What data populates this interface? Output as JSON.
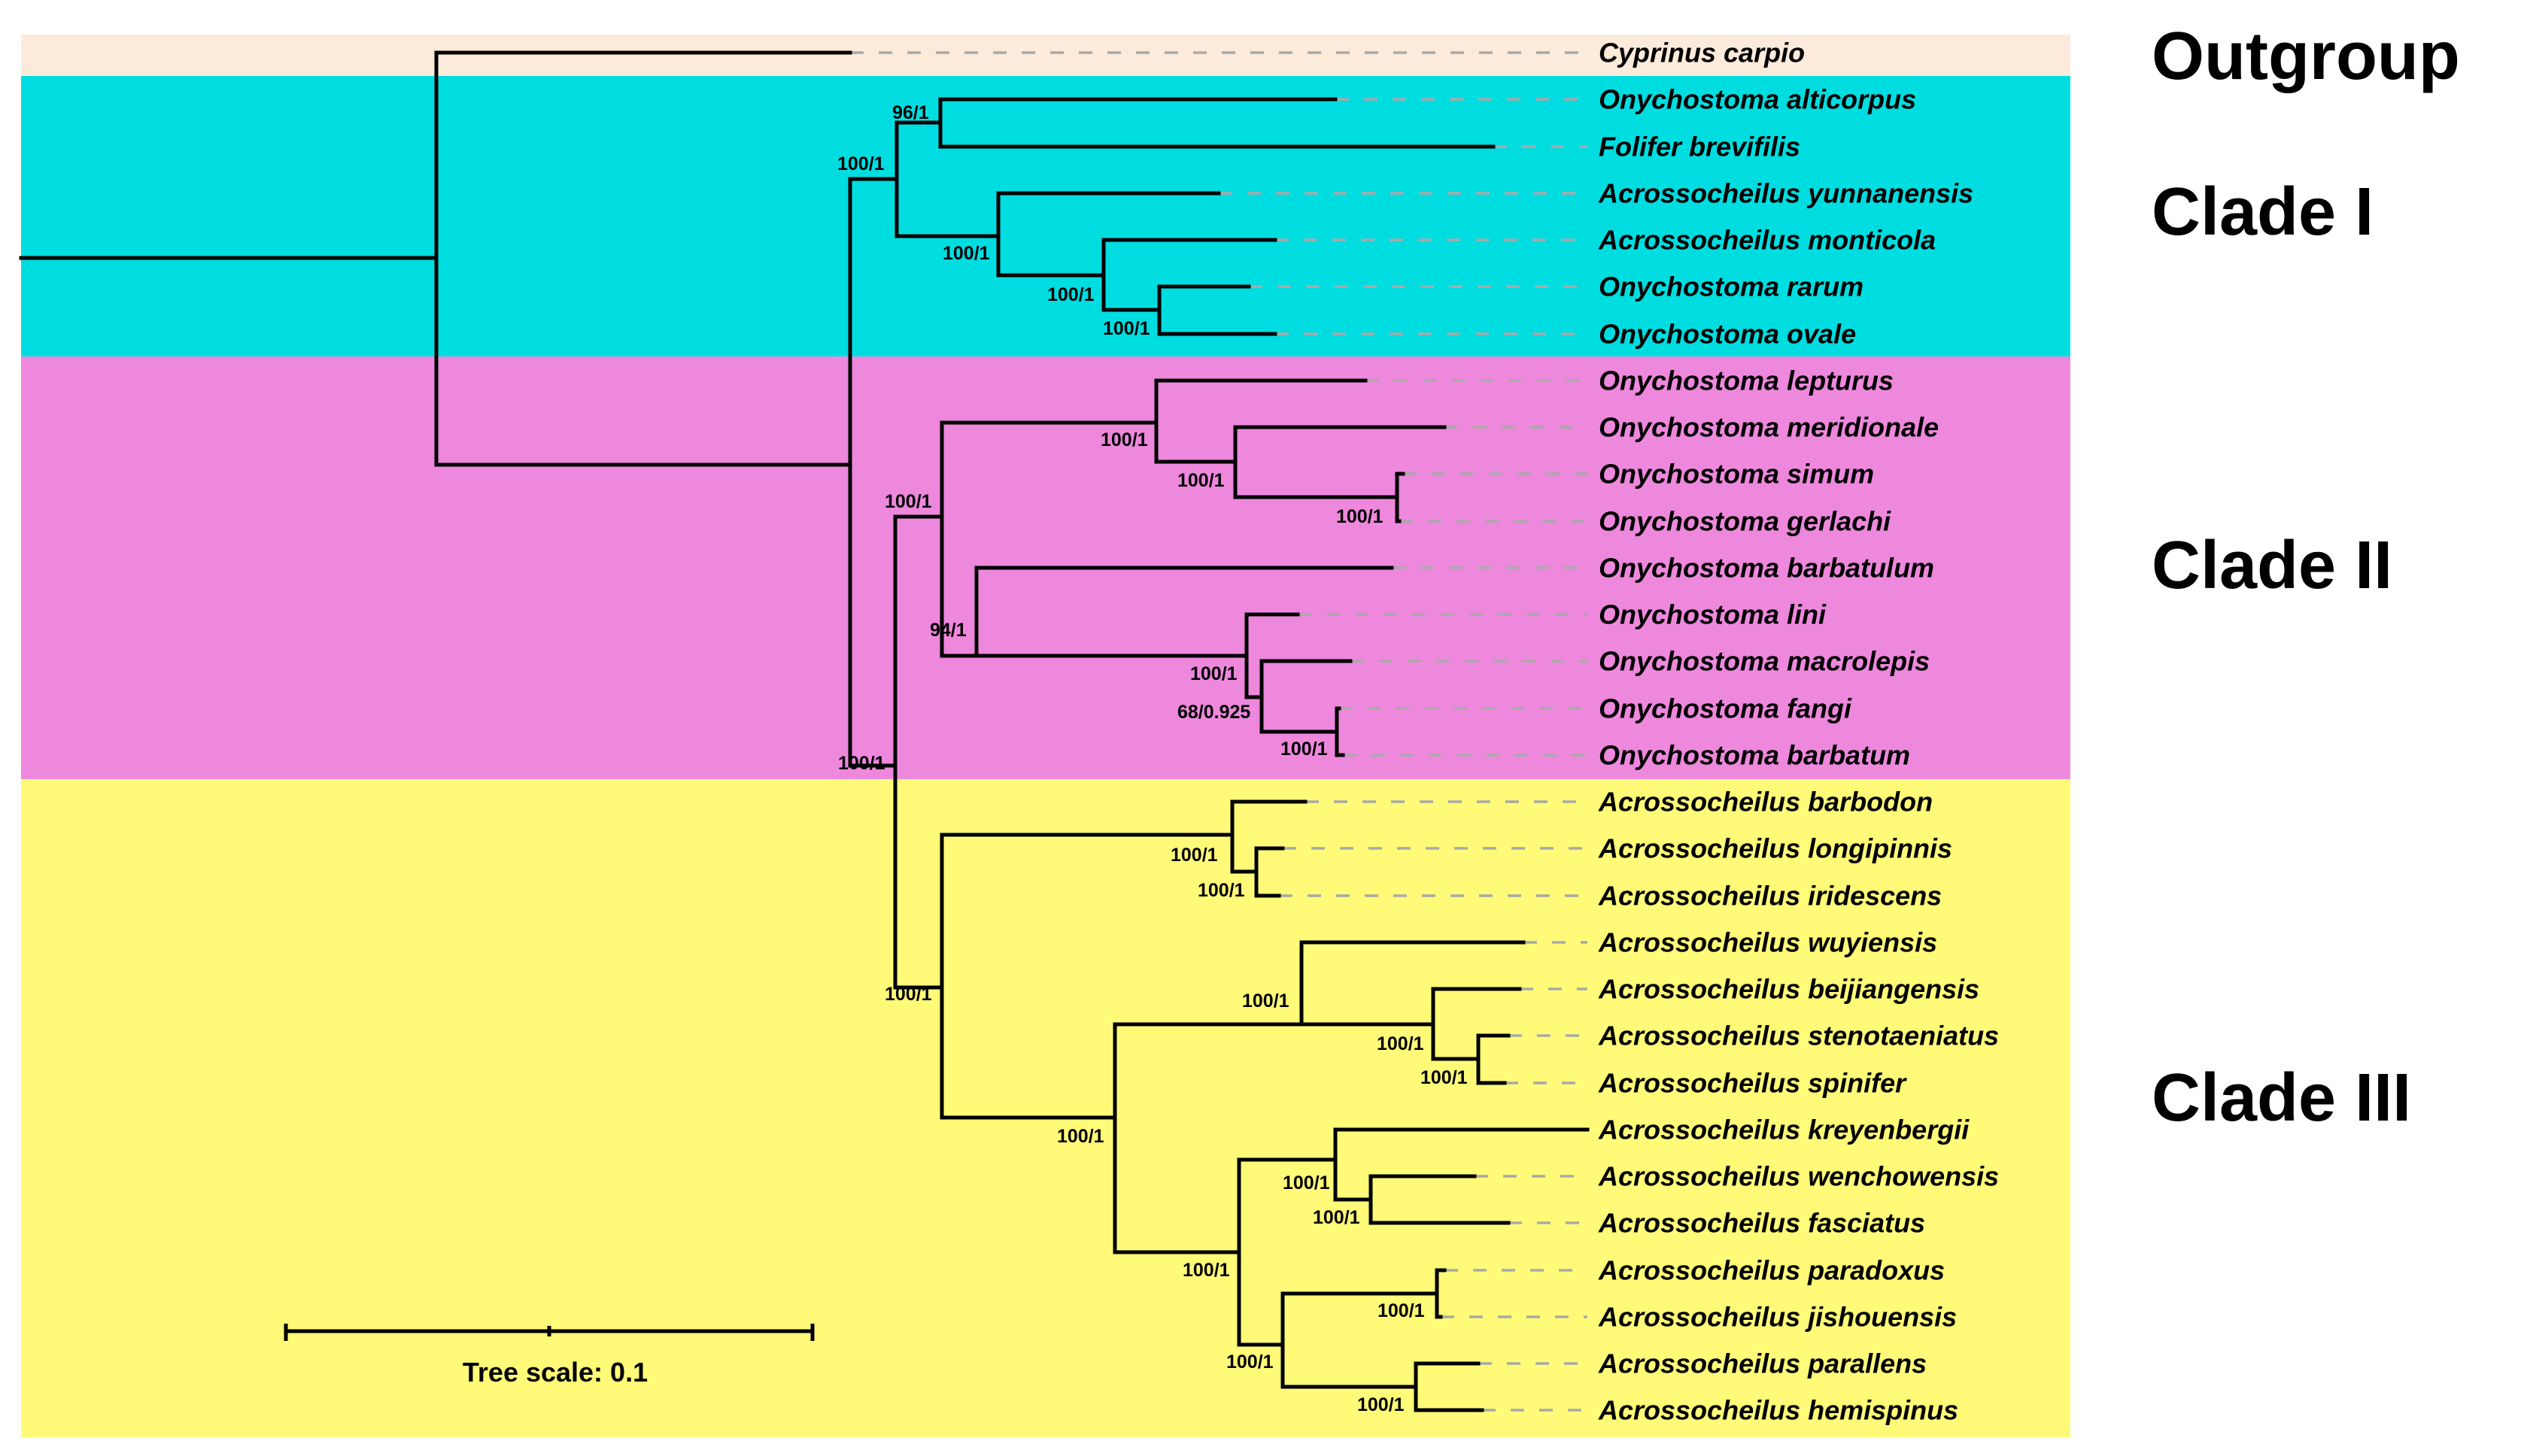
{
  "clades": [
    {
      "id": "outgroup",
      "label": "Outgroup",
      "color": "#FCEADB"
    },
    {
      "id": "clade1",
      "label": "Clade I",
      "color": "#00DDE0"
    },
    {
      "id": "clade2",
      "label": "Clade II",
      "color": "#EE88DD"
    },
    {
      "id": "clade3",
      "label": "Clade III",
      "color": "#FFFB78"
    }
  ],
  "taxa": [
    "Cyprinus carpio",
    "Onychostoma alticorpus",
    "Folifer brevifilis",
    "Acrossocheilus yunnanensis",
    "Acrossocheilus monticola",
    "Onychostoma rarum",
    "Onychostoma ovale",
    "Onychostoma lepturus",
    "Onychostoma meridionale",
    "Onychostoma simum",
    "Onychostoma gerlachi",
    "Onychostoma barbatulum",
    "Onychostoma lini",
    "Onychostoma macrolepis",
    "Onychostoma fangi",
    "Onychostoma barbatum",
    "Acrossocheilus barbodon",
    "Acrossocheilus longipinnis",
    "Acrossocheilus iridescens",
    "Acrossocheilus wuyiensis",
    "Acrossocheilus beijiangensis",
    "Acrossocheilus stenotaeniatus",
    "Acrossocheilus spinifer",
    "Acrossocheilus kreyenbergii",
    "Acrossocheilus wenchowensis",
    "Acrossocheilus fasciatus",
    "Acrossocheilus paradoxus",
    "Acrossocheilus jishouensis",
    "Acrossocheilus parallens",
    "Acrossocheilus hemispinus"
  ],
  "support_values": {
    "alticorpus_folifer": "96/1",
    "clade1": "100/1",
    "yunnanensis_group": "100/1",
    "monticola_group": "100/1",
    "rarum_ovale": "100/1",
    "clade2": "100/1",
    "lepturus_group": "100/1",
    "meridionale_group": "100/1",
    "simum_gerlachi": "100/1",
    "barbatulum_group": "94/1",
    "lini_group": "100/1",
    "macrolepis_group": "68/0.925",
    "fangi_barbatum": "100/1",
    "clade2_clade3": "100/1",
    "clade3": "100/1",
    "barbodon_group": "100/1",
    "longipinnis_iridescens": "100/1",
    "wuyiensis_kreyenbergii": "100/1",
    "wuyiensis_group": "100/1",
    "beijiangensis_group": "100/1",
    "stenotaeniatus_spinifer": "100/1",
    "kreyenbergii_hemispinus": "100/1",
    "kreyenbergii_group": "100/1",
    "wenchowensis_fasciatus": "100/1",
    "paradoxus_hemispinus": "100/1",
    "paradoxus_jishouensis": "100/1",
    "parallens_hemispinus": "100/1"
  },
  "scale": {
    "label": "Tree scale: 0.1",
    "value": 0.1
  }
}
